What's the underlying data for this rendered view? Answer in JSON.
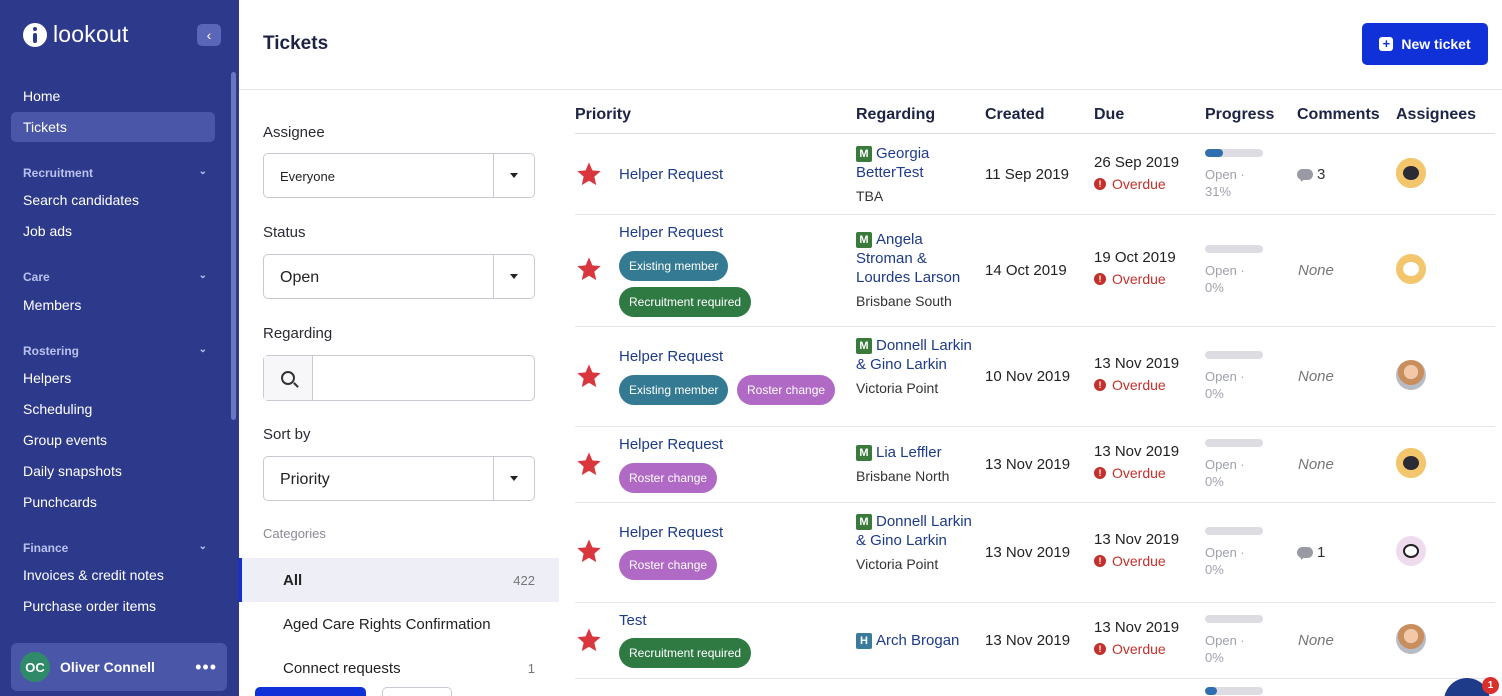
{
  "app": {
    "logo_text": "lookout"
  },
  "sidebar": {
    "top_items": [
      {
        "label": "Home"
      },
      {
        "label": "Tickets"
      }
    ],
    "sections": [
      {
        "label": "Recruitment",
        "items": [
          {
            "label": "Search candidates"
          },
          {
            "label": "Job ads"
          }
        ]
      },
      {
        "label": "Care",
        "items": [
          {
            "label": "Members"
          }
        ]
      },
      {
        "label": "Rostering",
        "items": [
          {
            "label": "Helpers"
          },
          {
            "label": "Scheduling"
          },
          {
            "label": "Group events"
          },
          {
            "label": "Daily snapshots"
          },
          {
            "label": "Punchcards"
          }
        ]
      },
      {
        "label": "Finance",
        "items": [
          {
            "label": "Invoices & credit notes"
          },
          {
            "label": "Purchase order items"
          }
        ]
      }
    ],
    "user": {
      "initials": "OC",
      "name": "Oliver Connell"
    }
  },
  "header": {
    "title": "Tickets",
    "new_ticket_label": "New ticket"
  },
  "filters": {
    "assignee": {
      "label": "Assignee",
      "value": "Everyone"
    },
    "status": {
      "label": "Status",
      "value": "Open"
    },
    "regarding": {
      "label": "Regarding",
      "value": ""
    },
    "sort_by": {
      "label": "Sort by",
      "value": "Priority"
    },
    "categories_title": "Categories",
    "categories": [
      {
        "label": "All",
        "count": "422"
      },
      {
        "label": "Aged Care Rights Confirmation",
        "count": ""
      },
      {
        "label": "Connect requests",
        "count": "1"
      }
    ]
  },
  "table": {
    "columns": [
      "Priority",
      "Regarding",
      "Created",
      "Due",
      "Progress",
      "Comments",
      "Assignees"
    ],
    "rows": [
      {
        "title": "Helper Request",
        "tags": [],
        "badge": "M",
        "regarding": "Georgia BetterTest",
        "location": "TBA",
        "created": "11 Sep 2019",
        "due": "26 Sep 2019",
        "overdue": "Overdue",
        "progress": 0.31,
        "status": "Open ·",
        "percent": "31%",
        "comments": "3",
        "avatar": "cat"
      },
      {
        "title": "Helper Request",
        "tags": [
          {
            "label": "Existing member",
            "kind": "existing"
          },
          {
            "label": "Recruitment required",
            "kind": "recruit"
          }
        ],
        "badge": "M",
        "regarding": "Angela Stroman & Lourdes Larson",
        "location": "Brisbane South",
        "created": "14 Oct 2019",
        "due": "19 Oct 2019",
        "overdue": "Overdue",
        "progress": 0,
        "status": "Open ·",
        "percent": "0%",
        "comments": "None",
        "avatar": "dog"
      },
      {
        "title": "Helper Request",
        "tags": [
          {
            "label": "Existing member",
            "kind": "existing"
          },
          {
            "label": "Roster change",
            "kind": "roster"
          }
        ],
        "badge": "M",
        "regarding": "Donnell Larkin & Gino Larkin",
        "location": "Victoria Point",
        "created": "10 Nov 2019",
        "due": "13 Nov 2019",
        "overdue": "Overdue",
        "progress": 0,
        "status": "Open ·",
        "percent": "0%",
        "comments": "None",
        "avatar": "photo"
      },
      {
        "title": "Helper Request",
        "tags": [
          {
            "label": "Roster change",
            "kind": "roster"
          }
        ],
        "badge": "M",
        "regarding": "Lia Leffler",
        "location": "Brisbane North",
        "created": "13 Nov 2019",
        "due": "13 Nov 2019",
        "overdue": "Overdue",
        "progress": 0,
        "status": "Open ·",
        "percent": "0%",
        "comments": "None",
        "avatar": "cat"
      },
      {
        "title": "Helper Request",
        "tags": [
          {
            "label": "Roster change",
            "kind": "roster"
          }
        ],
        "badge": "M",
        "regarding": "Donnell Larkin & Gino Larkin",
        "location": "Victoria Point",
        "created": "13 Nov 2019",
        "due": "13 Nov 2019",
        "overdue": "Overdue",
        "progress": 0,
        "status": "Open ·",
        "percent": "0%",
        "comments": "1",
        "avatar": "owl"
      },
      {
        "title": "Test",
        "tags": [
          {
            "label": "Recruitment required",
            "kind": "recruit"
          }
        ],
        "badge": "H",
        "regarding": "Arch Brogan",
        "location": "",
        "created": "13 Nov 2019",
        "due": "13 Nov 2019",
        "overdue": "Overdue",
        "progress": 0,
        "status": "Open ·",
        "percent": "0%",
        "comments": "None",
        "avatar": "photo"
      }
    ]
  },
  "chat": {
    "badge_count": "1"
  }
}
